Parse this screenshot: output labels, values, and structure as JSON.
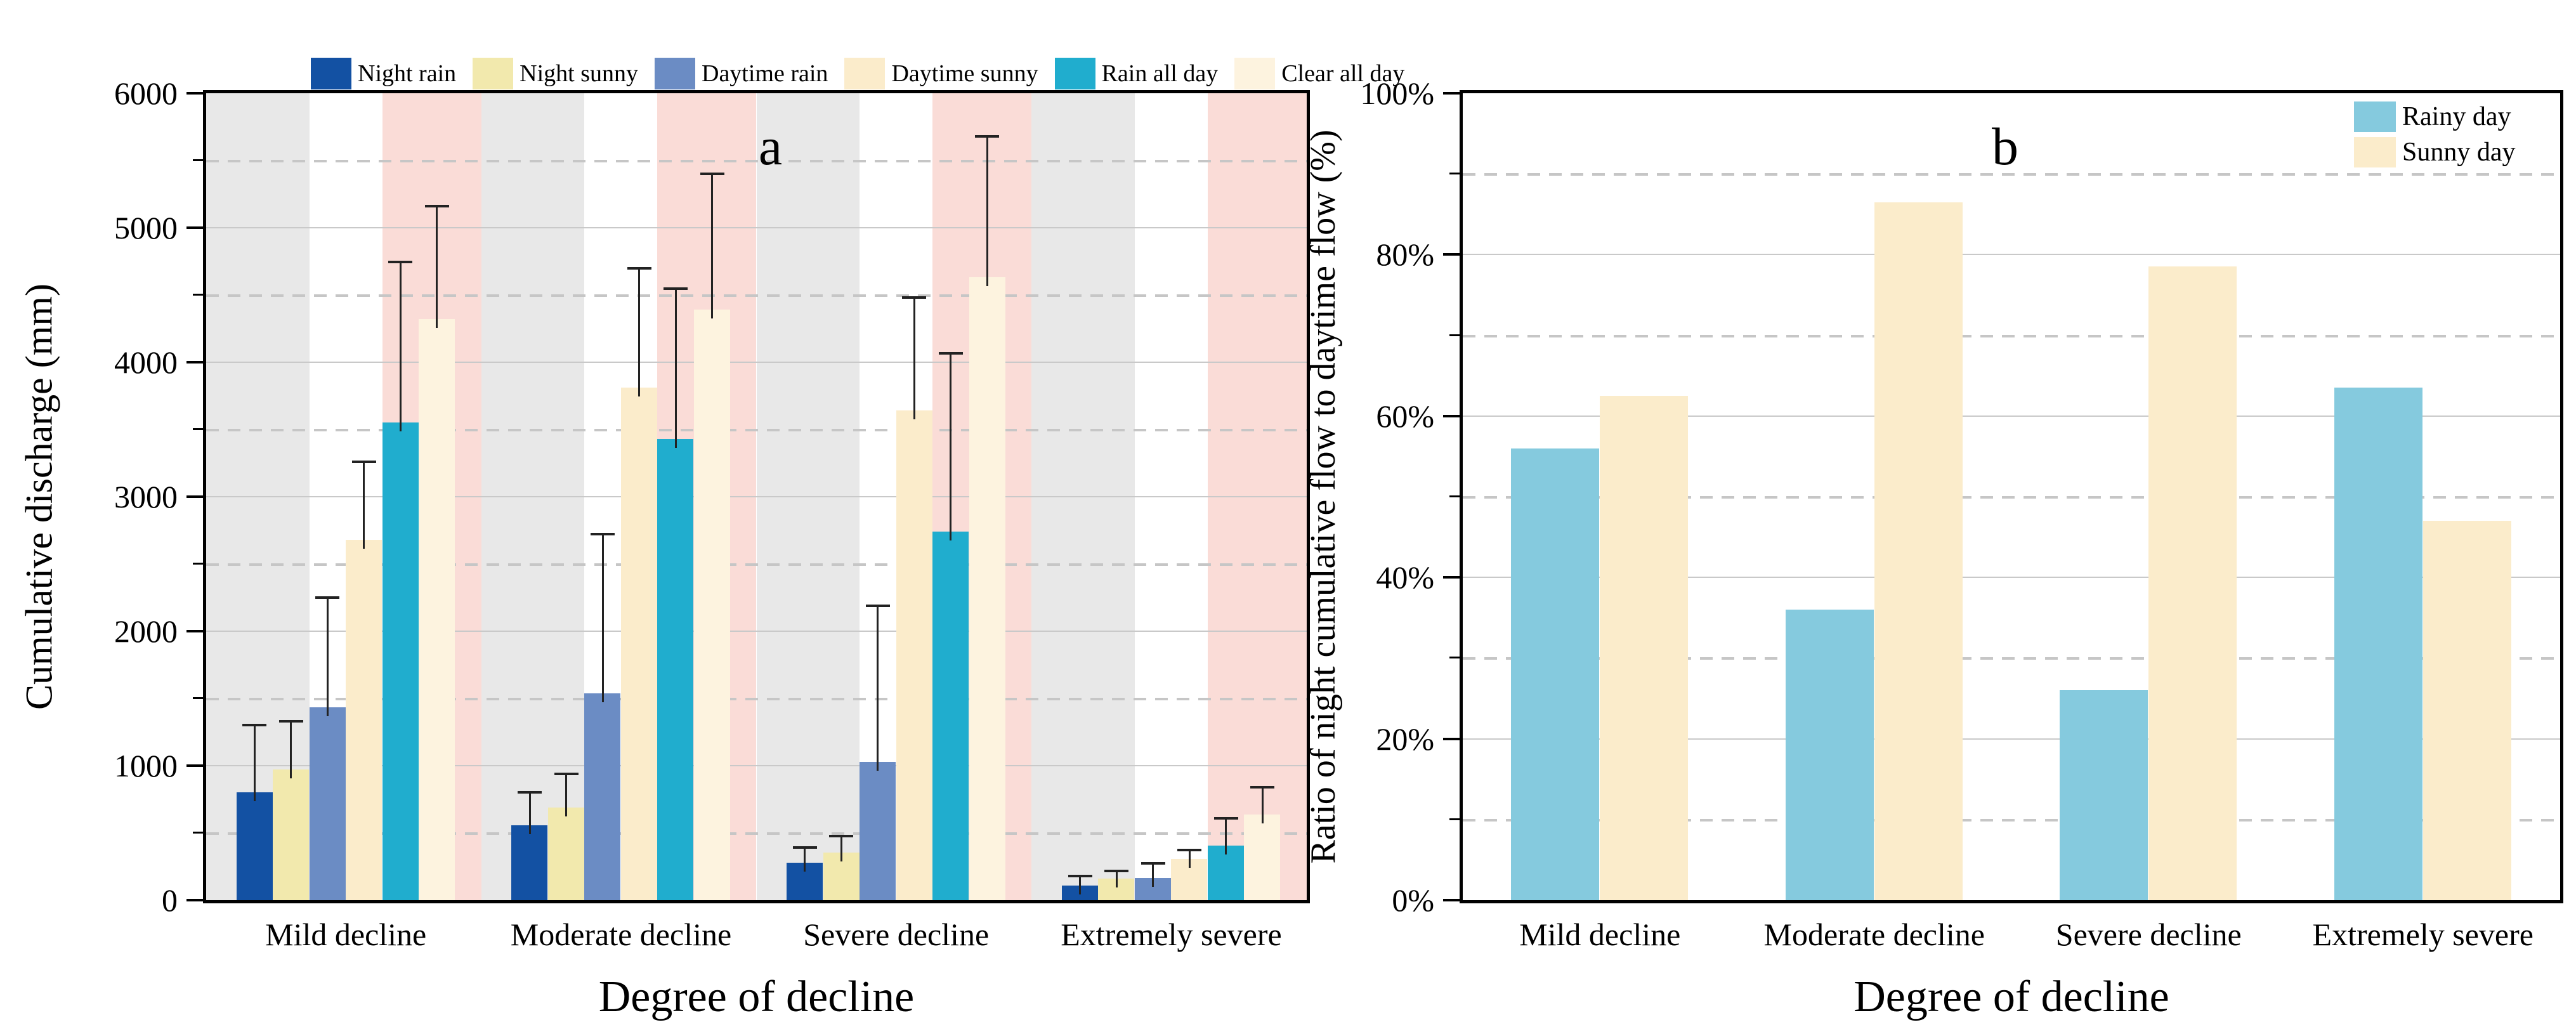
{
  "panel_a": {
    "label": "a",
    "ylabel": "Cumulative discharge (mm)",
    "xlabel": "Degree of decline",
    "legend": [
      "Night rain",
      "Night sunny",
      "Daytime rain",
      "Daytime sunny",
      "Rain all day",
      "Clear all day"
    ]
  },
  "panel_b": {
    "label": "b",
    "ylabel": "Ratio of night cumulative flow to daytime flow (%)",
    "xlabel": "Degree of decline",
    "legend": [
      "Rainy day",
      "Sunny day"
    ]
  },
  "colors": {
    "band_gray": "#e8e8e8",
    "band_pink": "#fadcd7",
    "grid_major": "#c9c9c9",
    "grid_minor": "#c6c6c6",
    "axis": "#000000"
  },
  "chart_data": [
    {
      "type": "bar",
      "panel": "a",
      "title": "",
      "categories": [
        "Mild decline",
        "Moderate decline",
        "Severe decline",
        "Extremely severe"
      ],
      "series": [
        {
          "name": "Night rain",
          "color": "#1351a3",
          "values": [
            800,
            555,
            277,
            110
          ],
          "error_top": [
            1300,
            800,
            390,
            180
          ]
        },
        {
          "name": "Night sunny",
          "color": "#f2e9ad",
          "values": [
            970,
            690,
            355,
            160
          ],
          "error_top": [
            1330,
            940,
            475,
            215
          ]
        },
        {
          "name": "Daytime rain",
          "color": "#6b8cc4",
          "values": [
            1435,
            1540,
            1030,
            165
          ],
          "error_top": [
            2250,
            2720,
            2190,
            275
          ]
        },
        {
          "name": "Daytime sunny",
          "color": "#fbeccb",
          "values": [
            2680,
            3810,
            3640,
            305
          ],
          "error_top": [
            3260,
            4700,
            4480,
            375
          ]
        },
        {
          "name": "Rain all day",
          "color": "#20adce",
          "values": [
            3550,
            3430,
            2740,
            405
          ],
          "error_top": [
            4745,
            4545,
            4065,
            610
          ]
        },
        {
          "name": "Clear all day",
          "color": "#fdf3df",
          "values": [
            4320,
            4390,
            4630,
            635
          ],
          "error_top": [
            5160,
            5400,
            5680,
            840
          ]
        }
      ],
      "ylabel": "Cumulative discharge (mm)",
      "xlabel": "Degree of decline",
      "ylim": [
        0,
        6000
      ],
      "ytick_major": 1000,
      "ytick_minor": 500,
      "grid": "major solid gray, minor dashed gray",
      "background_bands": "per group: gray behind bars 1-2, white behind bars 3-4, pink behind bars 5-6",
      "legend_position": "top above plot"
    },
    {
      "type": "bar",
      "panel": "b",
      "title": "",
      "categories": [
        "Mild decline",
        "Moderate decline",
        "Severe decline",
        "Extremely severe"
      ],
      "series": [
        {
          "name": "Rainy day",
          "color": "#85cade",
          "values": [
            56,
            36,
            26,
            63.5
          ]
        },
        {
          "name": "Sunny day",
          "color": "#fbeccb",
          "values": [
            62.5,
            86.5,
            78.5,
            47
          ]
        }
      ],
      "ylabel": "Ratio of night cumulative flow to daytime flow (%)",
      "xlabel": "Degree of decline",
      "ylim": [
        0,
        100
      ],
      "ytick_major": 20,
      "ytick_minor": 10,
      "ytick_format": "percent",
      "grid": "major solid gray, minor dashed gray",
      "legend_position": "top-right inside plot"
    }
  ]
}
